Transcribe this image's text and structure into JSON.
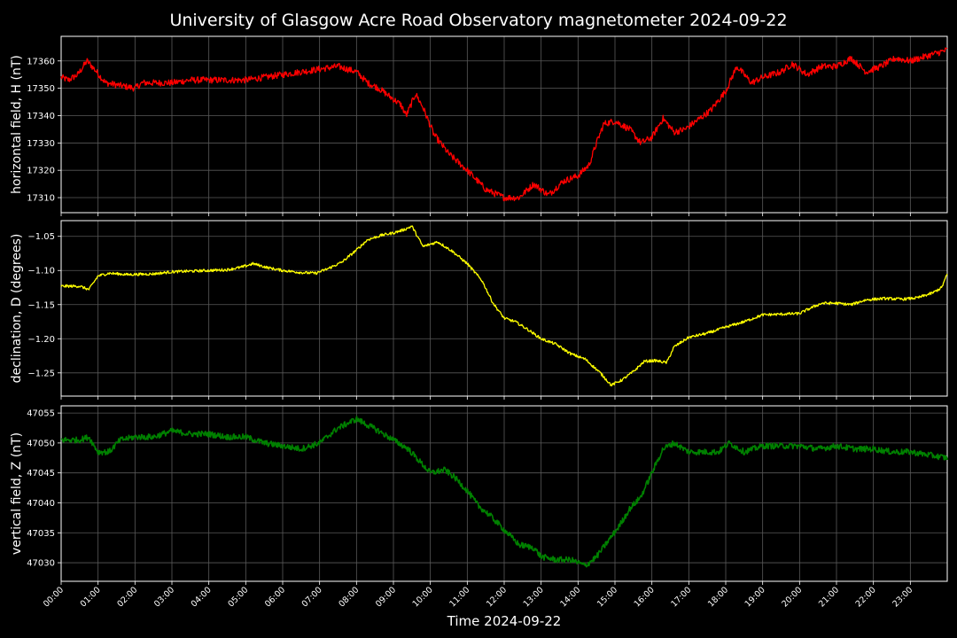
{
  "chart_data": {
    "type": "line",
    "title": "University of Glasgow Acre Road Observatory magnetometer 2024-09-22",
    "xlabel": "Time 2024-09-22",
    "x_unit": "hours",
    "xlim": [
      0,
      24
    ],
    "x_tick_labels": [
      "00:00",
      "01:00",
      "02:00",
      "03:00",
      "04:00",
      "05:00",
      "06:00",
      "07:00",
      "08:00",
      "09:00",
      "10:00",
      "11:00",
      "12:00",
      "13:00",
      "14:00",
      "15:00",
      "16:00",
      "17:00",
      "18:00",
      "19:00",
      "20:00",
      "21:00",
      "22:00",
      "23:00"
    ],
    "grid": true,
    "panels": [
      {
        "ylabel": "horizontal field, H (nT)",
        "color": "#ff0000",
        "ylim": [
          17304.5,
          17369
        ],
        "yticks": [
          17310,
          17320,
          17330,
          17340,
          17350,
          17360
        ],
        "noise": 1.2,
        "points": [
          [
            0,
            17354
          ],
          [
            0.2,
            17353
          ],
          [
            0.45,
            17355
          ],
          [
            0.7,
            17360
          ],
          [
            0.9,
            17357
          ],
          [
            1.2,
            17352
          ],
          [
            1.6,
            17351
          ],
          [
            2.0,
            17350
          ],
          [
            2.2,
            17352
          ],
          [
            3.0,
            17352
          ],
          [
            3.5,
            17353
          ],
          [
            4.0,
            17353
          ],
          [
            4.5,
            17353
          ],
          [
            5.0,
            17353
          ],
          [
            5.5,
            17354
          ],
          [
            6.0,
            17355
          ],
          [
            6.5,
            17356
          ],
          [
            7.0,
            17357
          ],
          [
            7.5,
            17358
          ],
          [
            8.0,
            17356
          ],
          [
            8.3,
            17352
          ],
          [
            8.6,
            17350
          ],
          [
            8.9,
            17347
          ],
          [
            9.2,
            17344
          ],
          [
            9.35,
            17340
          ],
          [
            9.6,
            17348
          ],
          [
            9.8,
            17343
          ],
          [
            10.1,
            17333
          ],
          [
            10.5,
            17326
          ],
          [
            11.0,
            17320
          ],
          [
            11.5,
            17313
          ],
          [
            12.0,
            17310
          ],
          [
            12.4,
            17310
          ],
          [
            12.8,
            17315
          ],
          [
            13.2,
            17311
          ],
          [
            13.6,
            17316
          ],
          [
            14.0,
            17318
          ],
          [
            14.3,
            17322
          ],
          [
            14.5,
            17330
          ],
          [
            14.7,
            17337
          ],
          [
            15.0,
            17338
          ],
          [
            15.4,
            17335
          ],
          [
            15.7,
            17330
          ],
          [
            16.0,
            17332
          ],
          [
            16.3,
            17339
          ],
          [
            16.6,
            17334
          ],
          [
            16.9,
            17335
          ],
          [
            17.2,
            17338
          ],
          [
            17.6,
            17342
          ],
          [
            18.0,
            17349
          ],
          [
            18.3,
            17358
          ],
          [
            18.7,
            17352
          ],
          [
            19.0,
            17354
          ],
          [
            19.5,
            17356
          ],
          [
            19.8,
            17359
          ],
          [
            20.2,
            17355
          ],
          [
            20.6,
            17358
          ],
          [
            21.0,
            17358
          ],
          [
            21.4,
            17361
          ],
          [
            21.8,
            17356
          ],
          [
            22.2,
            17358
          ],
          [
            22.6,
            17361
          ],
          [
            23.0,
            17360
          ],
          [
            23.5,
            17362
          ],
          [
            24.0,
            17364
          ]
        ]
      },
      {
        "ylabel": "declination, D (degrees)",
        "color": "#ffff00",
        "ylim": [
          -1.284,
          -1.027
        ],
        "yticks": [
          -1.25,
          -1.2,
          -1.15,
          -1.1,
          -1.05
        ],
        "noise": 0.002,
        "points": [
          [
            0,
            -1.123
          ],
          [
            0.5,
            -1.123
          ],
          [
            0.75,
            -1.128
          ],
          [
            1.0,
            -1.108
          ],
          [
            1.3,
            -1.104
          ],
          [
            1.8,
            -1.106
          ],
          [
            2.5,
            -1.105
          ],
          [
            3.0,
            -1.102
          ],
          [
            3.5,
            -1.101
          ],
          [
            4.0,
            -1.1
          ],
          [
            4.5,
            -1.099
          ],
          [
            4.9,
            -1.095
          ],
          [
            5.2,
            -1.09
          ],
          [
            5.6,
            -1.096
          ],
          [
            6.0,
            -1.1
          ],
          [
            6.5,
            -1.103
          ],
          [
            6.9,
            -1.104
          ],
          [
            7.2,
            -1.098
          ],
          [
            7.6,
            -1.088
          ],
          [
            8.0,
            -1.07
          ],
          [
            8.3,
            -1.055
          ],
          [
            8.7,
            -1.048
          ],
          [
            9.0,
            -1.045
          ],
          [
            9.3,
            -1.04
          ],
          [
            9.5,
            -1.035
          ],
          [
            9.8,
            -1.065
          ],
          [
            10.2,
            -1.058
          ],
          [
            10.6,
            -1.072
          ],
          [
            11.0,
            -1.09
          ],
          [
            11.4,
            -1.115
          ],
          [
            11.7,
            -1.148
          ],
          [
            12.0,
            -1.17
          ],
          [
            12.3,
            -1.175
          ],
          [
            12.6,
            -1.185
          ],
          [
            13.0,
            -1.2
          ],
          [
            13.4,
            -1.208
          ],
          [
            13.8,
            -1.222
          ],
          [
            14.2,
            -1.23
          ],
          [
            14.6,
            -1.25
          ],
          [
            14.9,
            -1.268
          ],
          [
            15.2,
            -1.26
          ],
          [
            15.5,
            -1.248
          ],
          [
            15.8,
            -1.233
          ],
          [
            16.1,
            -1.232
          ],
          [
            16.4,
            -1.235
          ],
          [
            16.6,
            -1.212
          ],
          [
            17.0,
            -1.198
          ],
          [
            17.5,
            -1.192
          ],
          [
            18.0,
            -1.183
          ],
          [
            18.5,
            -1.175
          ],
          [
            19.0,
            -1.165
          ],
          [
            19.5,
            -1.164
          ],
          [
            20.0,
            -1.163
          ],
          [
            20.3,
            -1.155
          ],
          [
            20.6,
            -1.148
          ],
          [
            21.0,
            -1.148
          ],
          [
            21.4,
            -1.15
          ],
          [
            21.8,
            -1.143
          ],
          [
            22.3,
            -1.141
          ],
          [
            22.8,
            -1.142
          ],
          [
            23.2,
            -1.14
          ],
          [
            23.6,
            -1.133
          ],
          [
            23.85,
            -1.125
          ],
          [
            24.0,
            -1.105
          ]
        ]
      },
      {
        "ylabel": "vertical field, Z (nT)",
        "color": "#008000",
        "ylim": [
          47026.9,
          47056.2
        ],
        "yticks": [
          47030,
          47035,
          47040,
          47045,
          47050,
          47055
        ],
        "noise": 0.5,
        "points": [
          [
            0,
            47050.5
          ],
          [
            0.5,
            47050.5
          ],
          [
            0.75,
            47051
          ],
          [
            1.0,
            47048.5
          ],
          [
            1.3,
            47048.5
          ],
          [
            1.6,
            47050.5
          ],
          [
            2.0,
            47051
          ],
          [
            2.5,
            47051
          ],
          [
            3.0,
            47052
          ],
          [
            3.5,
            47051.5
          ],
          [
            4.0,
            47051.5
          ],
          [
            4.5,
            47051
          ],
          [
            5.0,
            47051
          ],
          [
            5.5,
            47050
          ],
          [
            6.0,
            47049.5
          ],
          [
            6.5,
            47049
          ],
          [
            7.0,
            47050
          ],
          [
            7.5,
            47052.5
          ],
          [
            8.0,
            47054
          ],
          [
            8.3,
            47053
          ],
          [
            8.6,
            47052
          ],
          [
            9.0,
            47050.5
          ],
          [
            9.4,
            47049
          ],
          [
            9.7,
            47047
          ],
          [
            10.0,
            47045
          ],
          [
            10.4,
            47045.5
          ],
          [
            10.7,
            47044
          ],
          [
            11.0,
            47042
          ],
          [
            11.3,
            47039.5
          ],
          [
            11.6,
            47038
          ],
          [
            12.0,
            47035.5
          ],
          [
            12.4,
            47033
          ],
          [
            12.8,
            47032.5
          ],
          [
            13.0,
            47031
          ],
          [
            13.4,
            47030.5
          ],
          [
            13.8,
            47030.5
          ],
          [
            14.2,
            47029.5
          ],
          [
            14.5,
            47031
          ],
          [
            14.8,
            47033.5
          ],
          [
            15.1,
            47036
          ],
          [
            15.4,
            47039
          ],
          [
            15.7,
            47041
          ],
          [
            16.0,
            47045
          ],
          [
            16.3,
            47049
          ],
          [
            16.6,
            47050
          ],
          [
            17.0,
            47048.5
          ],
          [
            17.4,
            47048.5
          ],
          [
            17.8,
            47048.5
          ],
          [
            18.1,
            47050
          ],
          [
            18.5,
            47048.5
          ],
          [
            19.0,
            47049.5
          ],
          [
            19.5,
            47049.5
          ],
          [
            20.0,
            47049.5
          ],
          [
            20.5,
            47049
          ],
          [
            21.0,
            47049.5
          ],
          [
            21.5,
            47049
          ],
          [
            22.0,
            47049
          ],
          [
            22.5,
            47048.5
          ],
          [
            23.0,
            47048.5
          ],
          [
            23.5,
            47048
          ],
          [
            24.0,
            47047.5
          ]
        ]
      }
    ]
  }
}
